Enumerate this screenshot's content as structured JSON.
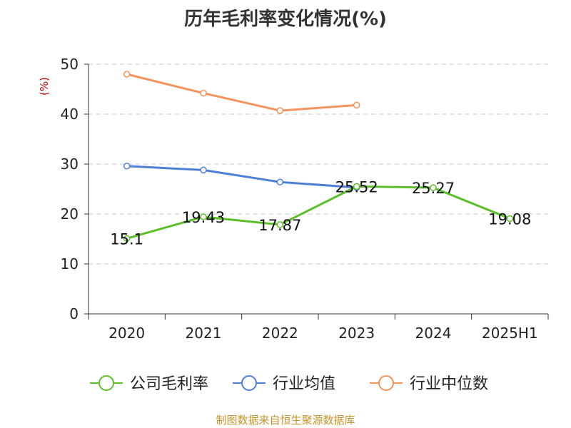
{
  "chart_data": {
    "type": "line",
    "title": "历年毛利率变化情况(%)",
    "xlabel": "",
    "ylabel": "(%)",
    "categories": [
      "2020",
      "2021",
      "2022",
      "2023",
      "2024",
      "2025H1"
    ],
    "ylim": [
      0,
      50
    ],
    "yticks": [
      0,
      10,
      20,
      30,
      40,
      50
    ],
    "grid": true,
    "legend_position": "bottom",
    "series": [
      {
        "name": "公司毛利率",
        "color": "#5cbf2a",
        "values": [
          15.1,
          19.43,
          17.87,
          25.52,
          25.27,
          19.08
        ],
        "labels": [
          "15.1",
          "19.43",
          "17.87",
          "25.52",
          "25.27",
          "19.08"
        ]
      },
      {
        "name": "行业均值",
        "color": "#4e7fd6",
        "values": [
          29.6,
          28.8,
          26.4,
          25.3,
          null,
          null
        ]
      },
      {
        "name": "行业中位数",
        "color": "#f4935b",
        "values": [
          48.0,
          44.2,
          40.7,
          41.8,
          null,
          null
        ]
      }
    ]
  },
  "source": "制图数据来自恒生聚源数据库"
}
